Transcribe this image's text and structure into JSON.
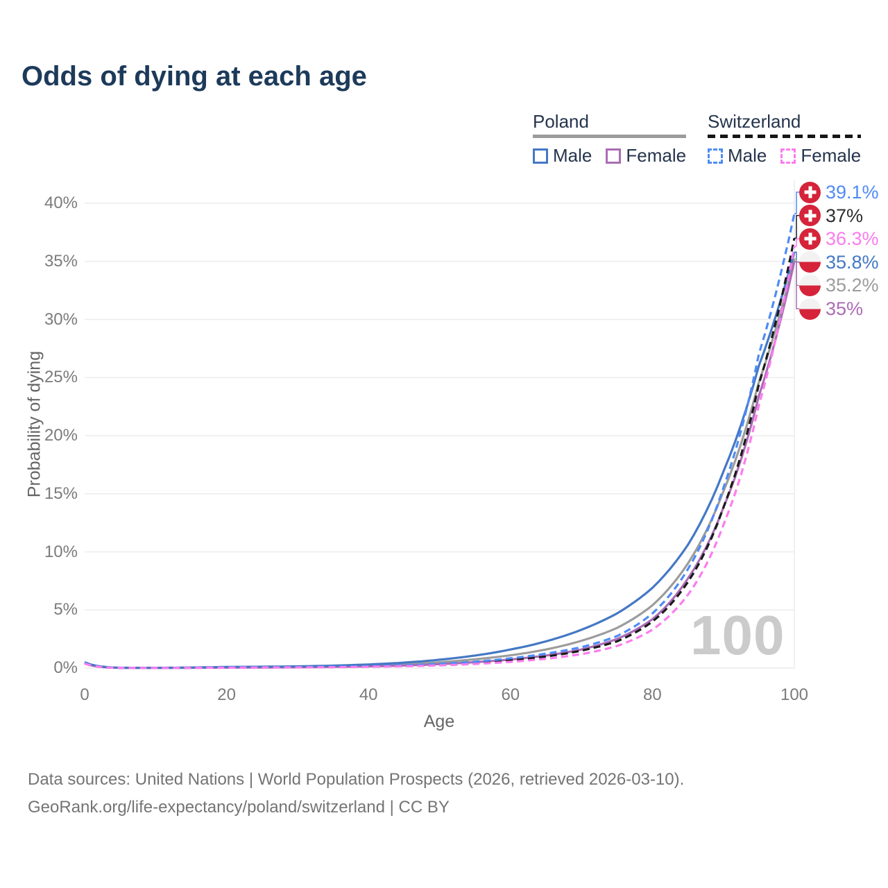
{
  "title": "Odds of dying at each age",
  "legend": {
    "groups": [
      {
        "label": "Poland",
        "underline_style": "solid",
        "underline_color": "#9b9b9b",
        "items": [
          {
            "label": "Male",
            "color": "#4478c4",
            "dashed": false
          },
          {
            "label": "Female",
            "color": "#aa6cb4",
            "dashed": false
          }
        ]
      },
      {
        "label": "Switzerland",
        "underline_style": "dashed",
        "underline_color": "#161616",
        "items": [
          {
            "label": "Male",
            "color": "#4f8bf5",
            "dashed": true
          },
          {
            "label": "Female",
            "color": "#fb7cee",
            "dashed": true
          }
        ]
      }
    ]
  },
  "chart_data": {
    "type": "line",
    "title": "Odds of dying at each age",
    "xlabel": "Age",
    "ylabel": "Probability of dying",
    "xlim": [
      0,
      100
    ],
    "ylim": [
      0,
      42
    ],
    "x_ticks": [
      0,
      20,
      40,
      60,
      80,
      100
    ],
    "y_ticks": [
      {
        "value": 0,
        "label": "0%"
      },
      {
        "value": 5,
        "label": "5%"
      },
      {
        "value": 10,
        "label": "10%"
      },
      {
        "value": 15,
        "label": "15%"
      },
      {
        "value": 20,
        "label": "20%"
      },
      {
        "value": 25,
        "label": "25%"
      },
      {
        "value": 30,
        "label": "30%"
      },
      {
        "value": 35,
        "label": "35%"
      },
      {
        "value": 40,
        "label": "40%"
      }
    ],
    "grid": true,
    "legend_position": "top-right",
    "watermark": "100",
    "x": [
      0,
      5,
      10,
      15,
      20,
      25,
      30,
      35,
      40,
      45,
      50,
      55,
      60,
      65,
      70,
      75,
      80,
      85,
      90,
      95,
      100
    ],
    "series": [
      {
        "name": "Poland (both sexes)",
        "country": "Poland",
        "sex": "Total",
        "color": "#9c9c9c",
        "dashed": false,
        "flag": "poland",
        "end_label": "35.2%",
        "label_color": "#9c9c9c",
        "values": [
          0.46,
          0.025,
          0.018,
          0.04,
          0.07,
          0.09,
          0.11,
          0.15,
          0.22,
          0.33,
          0.5,
          0.76,
          1.1,
          1.6,
          2.35,
          3.45,
          5.4,
          9.0,
          15.2,
          24.6,
          35.2
        ]
      },
      {
        "name": "Poland — Female",
        "country": "Poland",
        "sex": "Female",
        "color": "#aa6cb4",
        "dashed": false,
        "flag": "poland",
        "end_label": "35%",
        "label_color": "#aa6cb4",
        "values": [
          0.42,
          0.02,
          0.015,
          0.03,
          0.04,
          0.05,
          0.07,
          0.1,
          0.15,
          0.22,
          0.34,
          0.51,
          0.74,
          1.08,
          1.6,
          2.5,
          4.2,
          7.7,
          13.8,
          23.4,
          35.0
        ]
      },
      {
        "name": "Poland — Male",
        "country": "Poland",
        "sex": "Male",
        "color": "#4478c4",
        "dashed": false,
        "flag": "poland",
        "end_label": "35.8%",
        "label_color": "#4478c4",
        "values": [
          0.5,
          0.03,
          0.02,
          0.05,
          0.1,
          0.12,
          0.15,
          0.21,
          0.31,
          0.47,
          0.72,
          1.08,
          1.6,
          2.3,
          3.3,
          4.7,
          6.9,
          10.6,
          16.9,
          26.0,
          35.8
        ]
      },
      {
        "name": "Switzerland (both sexes)",
        "country": "Switzerland",
        "sex": "Total",
        "color": "#1b1b1b",
        "dashed": true,
        "flag": "switzerland",
        "end_label": "37%",
        "label_color": "#2e2e2e",
        "values": [
          0.4,
          0.02,
          0.012,
          0.028,
          0.05,
          0.06,
          0.07,
          0.09,
          0.13,
          0.19,
          0.28,
          0.43,
          0.66,
          1.0,
          1.5,
          2.3,
          4.0,
          7.4,
          13.8,
          24.4,
          37.0
        ]
      },
      {
        "name": "Switzerland — Male",
        "country": "Switzerland",
        "sex": "Male",
        "color": "#4f8bf5",
        "dashed": true,
        "flag": "switzerland",
        "end_label": "39.1%",
        "label_color": "#4f8bf5",
        "values": [
          0.42,
          0.025,
          0.015,
          0.035,
          0.07,
          0.08,
          0.09,
          0.12,
          0.16,
          0.24,
          0.36,
          0.55,
          0.84,
          1.25,
          1.8,
          2.75,
          4.7,
          8.5,
          15.5,
          27.0,
          39.1
        ]
      },
      {
        "name": "Switzerland — Female",
        "country": "Switzerland",
        "sex": "Female",
        "color": "#fb7cee",
        "dashed": true,
        "flag": "switzerland",
        "end_label": "36.3%",
        "label_color": "#fb7cee",
        "values": [
          0.38,
          0.018,
          0.01,
          0.022,
          0.035,
          0.045,
          0.055,
          0.075,
          0.11,
          0.16,
          0.23,
          0.36,
          0.54,
          0.8,
          1.2,
          1.9,
          3.3,
          6.3,
          12.3,
          22.6,
          36.3
        ]
      }
    ]
  },
  "flag_colors": {
    "swiss_red": "#d5243a",
    "swiss_cross": "#ffffff",
    "poland_white": "#f2f2f2",
    "poland_red": "#d5243a"
  },
  "footer": {
    "line1": "Data sources: United Nations | World Population Prospects (2026, retrieved 2026-03-10).",
    "line2": "GeoRank.org/life-expectancy/poland/switzerland | CC BY"
  }
}
